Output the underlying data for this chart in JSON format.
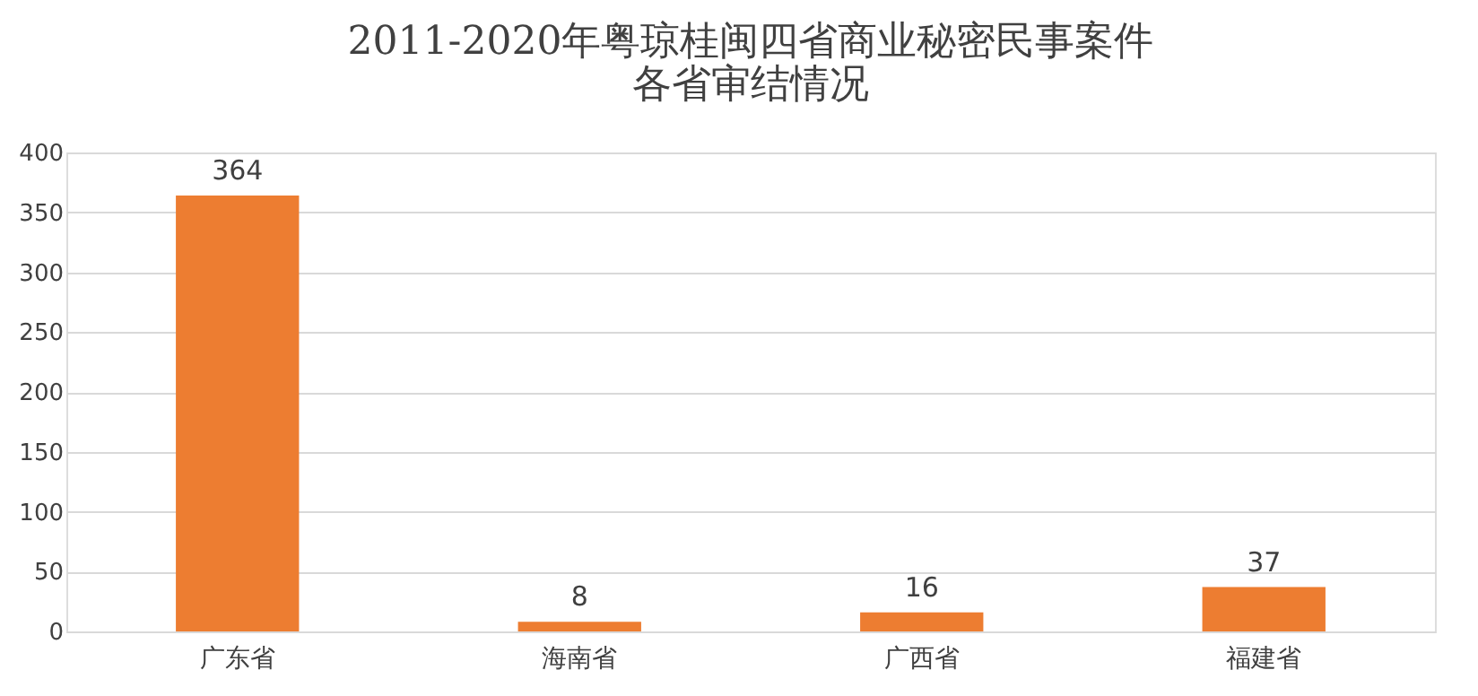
{
  "chart_data": {
    "type": "bar",
    "title": [
      "2011-2020年粤琼桂闽四省商业秘密民事案件",
      "各省审结情况"
    ],
    "categories": [
      "广东省",
      "海南省",
      "广西省",
      "福建省"
    ],
    "values": [
      364,
      8,
      16,
      37
    ],
    "color": "#ed7d31",
    "ylim": [
      0,
      400
    ],
    "yticks": [
      0,
      50,
      100,
      150,
      200,
      250,
      300,
      350,
      400
    ],
    "grid": "y",
    "data_labels": true
  }
}
